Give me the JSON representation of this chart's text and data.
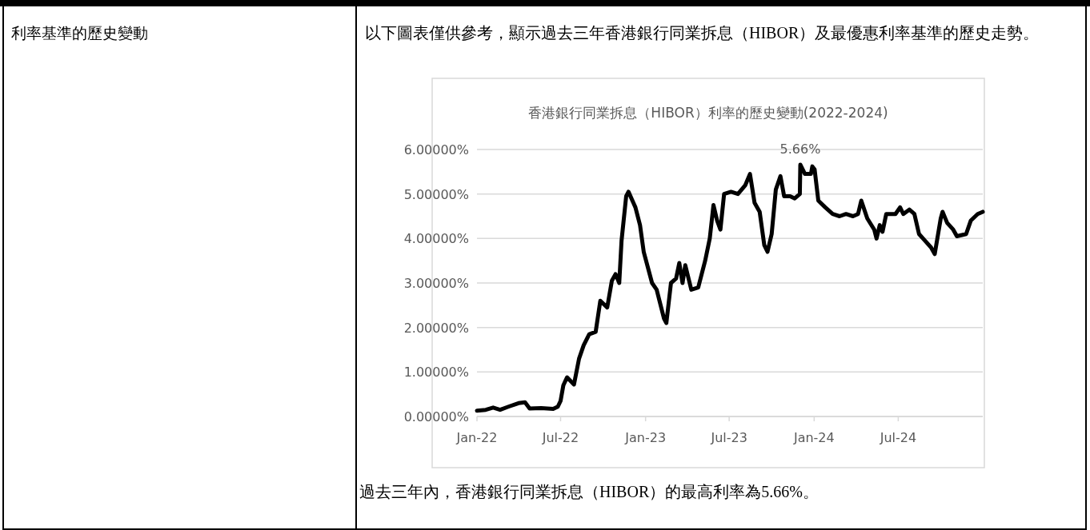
{
  "chart_data": {
    "type": "line",
    "title": "香港銀行同業拆息（HIBOR）利率的歷史變動(2022-2024)",
    "annotations": [
      "利率基準的歷史變動",
      "以下圖表僅供參考，顯示過去三年香港銀行同業拆息（HIBOR）及最優惠利率基準的歷史走勢。",
      "過去三年內，香港銀行同業拆息（HIBOR）的最高利率為5.66%。",
      {
        "text": "5.66%",
        "x": "2023-12-02",
        "y": 5.66
      }
    ],
    "xlim": [
      "2022-01-01",
      "2024-12-31"
    ],
    "xticks": [
      {
        "value": "2022-01-01",
        "label": "Jan-22"
      },
      {
        "value": "2022-07-01",
        "label": "Jul-22"
      },
      {
        "value": "2023-01-01",
        "label": "Jan-23"
      },
      {
        "value": "2023-07-01",
        "label": "Jul-23"
      },
      {
        "value": "2024-01-01",
        "label": "Jan-24"
      },
      {
        "value": "2024-07-01",
        "label": "Jul-24"
      }
    ],
    "ylim": [
      0,
      6
    ],
    "yticks": [
      {
        "value": 0,
        "label": "0.00000%"
      },
      {
        "value": 1,
        "label": "1.00000%"
      },
      {
        "value": 2,
        "label": "2.00000%"
      },
      {
        "value": 3,
        "label": "3.00000%"
      },
      {
        "value": 4,
        "label": "4.00000%"
      },
      {
        "value": 5,
        "label": "5.00000%"
      },
      {
        "value": 6,
        "label": "6.00000%"
      }
    ],
    "grid": "y",
    "marker": "none",
    "line_style": "solid",
    "series": [
      {
        "color": "#000000",
        "x": [
          "2022-01-01",
          "2022-01-20",
          "2022-02-05",
          "2022-02-20",
          "2022-03-10",
          "2022-04-01",
          "2022-04-15",
          "2022-04-25",
          "2022-05-20",
          "2022-06-15",
          "2022-06-25",
          "2022-07-01",
          "2022-07-07",
          "2022-07-15",
          "2022-07-30",
          "2022-08-10",
          "2022-08-20",
          "2022-09-01",
          "2022-09-15",
          "2022-09-25",
          "2022-10-10",
          "2022-10-20",
          "2022-10-28",
          "2022-11-05",
          "2022-11-10",
          "2022-11-20",
          "2022-11-25",
          "2022-12-10",
          "2022-12-20",
          "2022-12-28",
          "2023-01-15",
          "2023-01-25",
          "2023-02-10",
          "2023-02-15",
          "2023-02-25",
          "2023-03-08",
          "2023-03-15",
          "2023-03-22",
          "2023-03-28",
          "2023-04-10",
          "2023-04-25",
          "2023-05-10",
          "2023-05-20",
          "2023-05-28",
          "2023-06-05",
          "2023-06-12",
          "2023-06-20",
          "2023-07-05",
          "2023-07-20",
          "2023-08-05",
          "2023-08-15",
          "2023-08-25",
          "2023-09-05",
          "2023-09-15",
          "2023-09-22",
          "2023-10-01",
          "2023-10-10",
          "2023-10-20",
          "2023-10-28",
          "2023-11-10",
          "2023-11-20",
          "2023-12-01",
          "2023-12-02",
          "2023-12-12",
          "2023-12-25",
          "2023-12-28",
          "2024-01-02",
          "2024-01-10",
          "2024-01-25",
          "2024-02-10",
          "2024-02-25",
          "2024-03-10",
          "2024-03-25",
          "2024-04-05",
          "2024-04-12",
          "2024-04-25",
          "2024-05-10",
          "2024-05-15",
          "2024-05-22",
          "2024-05-28",
          "2024-06-05",
          "2024-06-25",
          "2024-07-05",
          "2024-07-12",
          "2024-07-25",
          "2024-08-05",
          "2024-08-15",
          "2024-08-28",
          "2024-09-10",
          "2024-09-18",
          "2024-10-01",
          "2024-10-05",
          "2024-10-15",
          "2024-10-28",
          "2024-11-05",
          "2024-11-25",
          "2024-12-05",
          "2024-12-20",
          "2024-12-31"
        ],
        "values": [
          0.13,
          0.15,
          0.2,
          0.15,
          0.22,
          0.3,
          0.32,
          0.18,
          0.19,
          0.17,
          0.22,
          0.35,
          0.7,
          0.88,
          0.72,
          1.3,
          1.6,
          1.85,
          1.9,
          2.6,
          2.45,
          3.05,
          3.2,
          3.0,
          3.95,
          4.95,
          5.05,
          4.7,
          4.3,
          3.7,
          3.0,
          2.85,
          2.2,
          2.1,
          3.0,
          3.1,
          3.45,
          3.0,
          3.4,
          2.85,
          2.9,
          3.5,
          4.0,
          4.75,
          4.4,
          4.2,
          5.0,
          5.05,
          5.0,
          5.2,
          5.45,
          4.8,
          4.6,
          3.85,
          3.7,
          4.1,
          5.1,
          5.4,
          4.95,
          4.95,
          4.9,
          5.0,
          5.66,
          5.45,
          5.45,
          5.62,
          5.55,
          4.85,
          4.7,
          4.55,
          4.5,
          4.55,
          4.5,
          4.55,
          4.85,
          4.45,
          4.2,
          4.0,
          4.3,
          4.15,
          4.55,
          4.55,
          4.7,
          4.55,
          4.65,
          4.55,
          4.1,
          3.95,
          3.8,
          3.65,
          4.45,
          4.6,
          4.35,
          4.2,
          4.05,
          4.1,
          4.4,
          4.55,
          4.6
        ]
      }
    ]
  }
}
